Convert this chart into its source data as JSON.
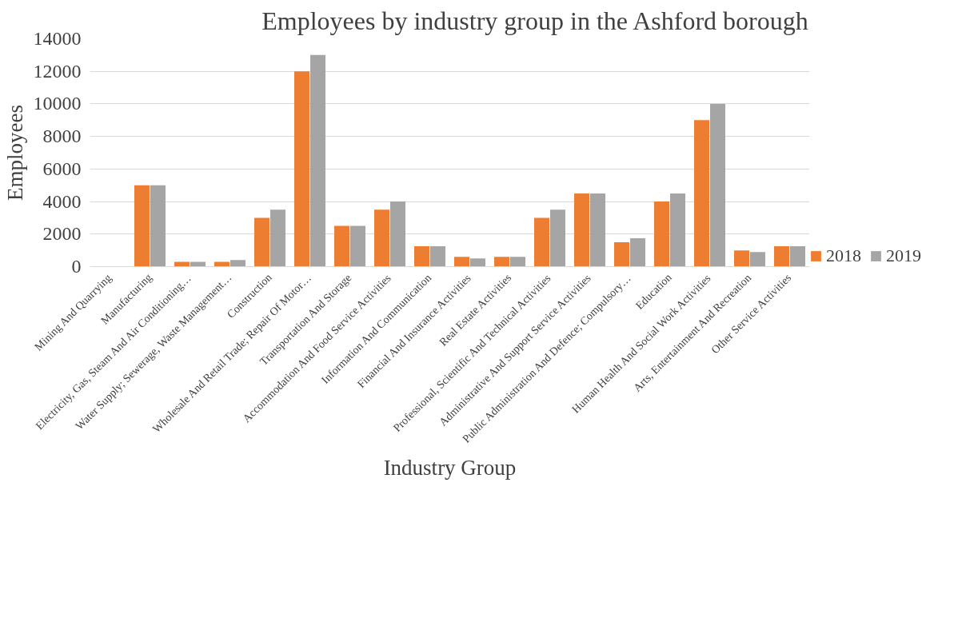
{
  "chart_data": {
    "type": "bar",
    "title": "Employees by industry group in the Ashford borough",
    "xlabel": "Industry Group",
    "ylabel": "Employees",
    "categories": [
      "Mining And Quarrying",
      "Manufacturing",
      "Electricity, Gas, Steam And Air Conditioning…",
      "Water Supply; Sewerage, Waste Management…",
      "Construction",
      "Wholesale And Retail Trade; Repair Of Motor…",
      "Transportation And Storage",
      "Accommodation And Food Service Activities",
      "Information And Communication",
      "Financial And Insurance Activities",
      "Real Estate Activities",
      "Professional, Scientific And Technical Activities",
      "Administrative And Support Service Activities",
      "Public Administration And Defence; Compulsory…",
      "Education",
      "Human Health And Social Work Activities",
      "Arts, Entertainment And Recreation",
      "Other Service Activities"
    ],
    "series": [
      {
        "name": "2018",
        "color": "#ed7d31",
        "values": [
          0,
          5000,
          300,
          300,
          3000,
          12000,
          2500,
          3500,
          1250,
          600,
          600,
          3000,
          4500,
          1500,
          4000,
          9000,
          1000,
          1250
        ]
      },
      {
        "name": "2019",
        "color": "#a5a5a5",
        "values": [
          0,
          5000,
          300,
          400,
          3500,
          13000,
          2500,
          4000,
          1250,
          500,
          600,
          3500,
          4500,
          1750,
          4500,
          10000,
          900,
          1250
        ]
      }
    ],
    "ylim": [
      0,
      14000
    ],
    "yticks": [
      0,
      2000,
      4000,
      6000,
      8000,
      10000,
      12000,
      14000
    ],
    "grid": "y",
    "legend": "bottom right"
  }
}
